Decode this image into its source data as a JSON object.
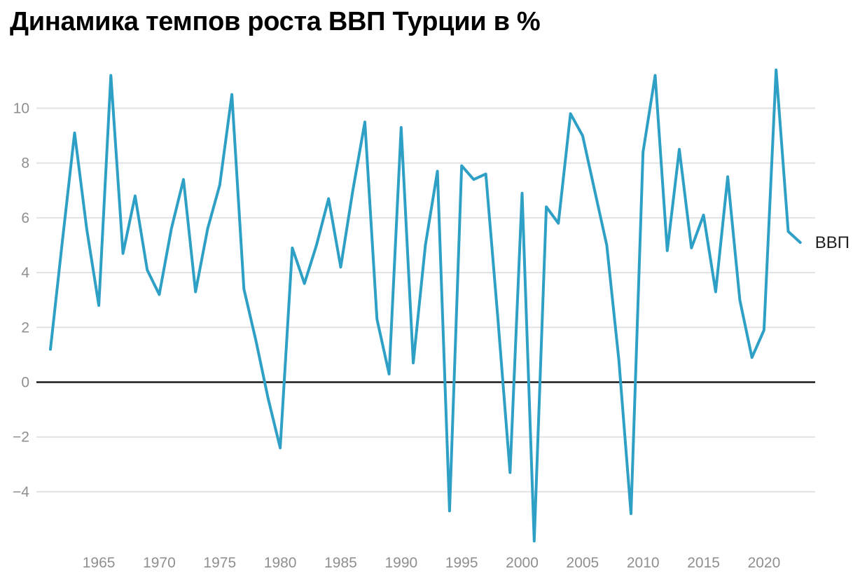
{
  "title": "Динамика темпов роста ВВП Турции в %",
  "legend": {
    "label": "ВВП"
  },
  "colors": {
    "line": "#2FA0C5",
    "gridline": "#E2E2E2",
    "zero_line": "#1A1A1A",
    "tick_text": "#8F8F8F",
    "title_text": "#000000",
    "background": "#FFFFFF"
  },
  "chart_data": {
    "type": "line",
    "title": "Динамика темпов роста ВВП Турции в %",
    "xlabel": "",
    "ylabel": "",
    "grid": "horizontal",
    "zero_line": true,
    "legend_position": "right-of-line-end",
    "xlim": [
      1961,
      2023
    ],
    "ylim": [
      -6.5,
      11.8
    ],
    "x_ticks": [
      1965,
      1970,
      1975,
      1980,
      1985,
      1990,
      1995,
      2000,
      2005,
      2010,
      2015,
      2020
    ],
    "x_tick_labels": [
      "1965",
      "1970",
      "1975",
      "1980",
      "1985",
      "1990",
      "1995",
      "2000",
      "2005",
      "2010",
      "2015",
      "2020"
    ],
    "y_ticks": [
      10,
      8,
      6,
      4,
      2,
      0,
      -2,
      -4
    ],
    "y_tick_labels": [
      "10",
      "8",
      "6",
      "4",
      "2",
      "0",
      "−2",
      "−4"
    ],
    "series": [
      {
        "name": "ВВП",
        "x": [
          1961,
          1962,
          1963,
          1964,
          1965,
          1966,
          1967,
          1968,
          1969,
          1970,
          1971,
          1972,
          1973,
          1974,
          1975,
          1976,
          1977,
          1978,
          1979,
          1980,
          1981,
          1982,
          1983,
          1984,
          1985,
          1986,
          1987,
          1988,
          1989,
          1990,
          1991,
          1992,
          1993,
          1994,
          1995,
          1996,
          1997,
          1998,
          1999,
          2000,
          2001,
          2002,
          2003,
          2004,
          2005,
          2006,
          2007,
          2008,
          2009,
          2010,
          2011,
          2012,
          2013,
          2014,
          2015,
          2016,
          2017,
          2018,
          2019,
          2020,
          2021,
          2022,
          2023
        ],
        "values": [
          1.2,
          5.2,
          9.1,
          5.6,
          2.8,
          11.2,
          4.7,
          6.8,
          4.1,
          3.2,
          5.6,
          7.4,
          3.3,
          5.6,
          7.2,
          10.5,
          3.4,
          1.5,
          -0.6,
          -2.4,
          4.9,
          3.6,
          5.0,
          6.7,
          4.2,
          7.0,
          9.5,
          2.3,
          0.3,
          9.3,
          0.7,
          5.0,
          7.7,
          -4.7,
          7.9,
          7.4,
          7.6,
          2.3,
          -3.3,
          6.9,
          -5.8,
          6.4,
          5.8,
          9.8,
          9.0,
          7.0,
          5.0,
          0.8,
          -4.8,
          8.4,
          11.2,
          4.8,
          8.5,
          4.9,
          6.1,
          3.3,
          7.5,
          3.0,
          0.9,
          1.9,
          11.4,
          5.5,
          5.1
        ]
      }
    ]
  }
}
